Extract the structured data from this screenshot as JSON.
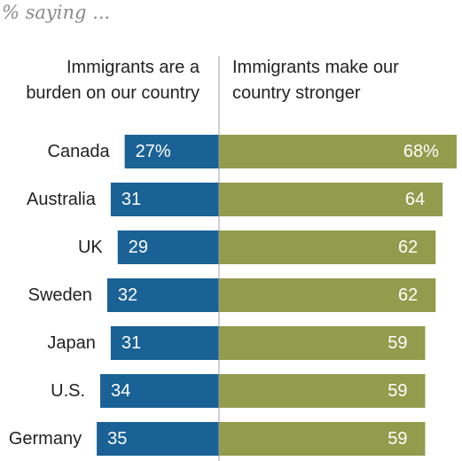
{
  "subtitle": "% saying ...",
  "headers": {
    "left": [
      "Immigrants are a",
      "burden on our country"
    ],
    "right": [
      "Immigrants make our",
      "country stronger"
    ]
  },
  "colors": {
    "burden": "#1a6196",
    "stronger": "#939b4c",
    "axis": "#a0a0a0"
  },
  "chart_data": {
    "type": "bar",
    "categories": [
      "Canada",
      "Australia",
      "UK",
      "Sweden",
      "Japan",
      "U.S.",
      "Germany"
    ],
    "series": [
      {
        "name": "Immigrants are a burden on our country",
        "values": [
          27,
          31,
          29,
          32,
          31,
          34,
          35
        ],
        "labels": [
          "27%",
          "31",
          "29",
          "32",
          "31",
          "34",
          "35"
        ]
      },
      {
        "name": "Immigrants make our country stronger",
        "values": [
          68,
          64,
          62,
          62,
          59,
          59,
          59
        ],
        "labels": [
          "68%",
          "64",
          "62",
          "62",
          "59",
          "59",
          "59"
        ]
      }
    ]
  }
}
